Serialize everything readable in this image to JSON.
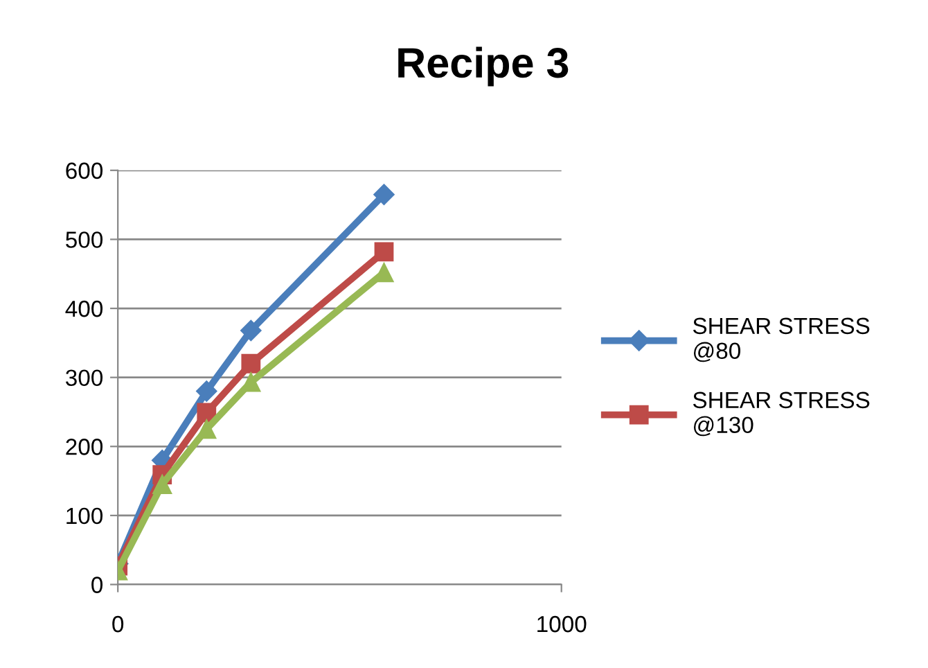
{
  "chart_data": {
    "type": "line",
    "title": "Recipe 3",
    "x": [
      0,
      100,
      200,
      300,
      600
    ],
    "series": [
      {
        "name": "SHEAR STRESS @80",
        "color": "#4a7ebb",
        "values": [
          30,
          180,
          280,
          368,
          565
        ],
        "marker": "diamond"
      },
      {
        "name": "SHEAR STRESS @130",
        "color": "#be4b48",
        "values": [
          27,
          159,
          249,
          320,
          482
        ],
        "marker": "square"
      },
      {
        "color": "#98b954",
        "values": [
          20,
          145,
          225,
          293,
          452
        ],
        "marker": "triangle"
      }
    ],
    "xlim": [
      0,
      1000
    ],
    "xticks": [
      0,
      1000
    ],
    "ylim": [
      0,
      600
    ],
    "yticks": [
      0,
      100,
      200,
      300,
      400,
      500,
      600
    ],
    "grid": "y",
    "legend": "right"
  }
}
